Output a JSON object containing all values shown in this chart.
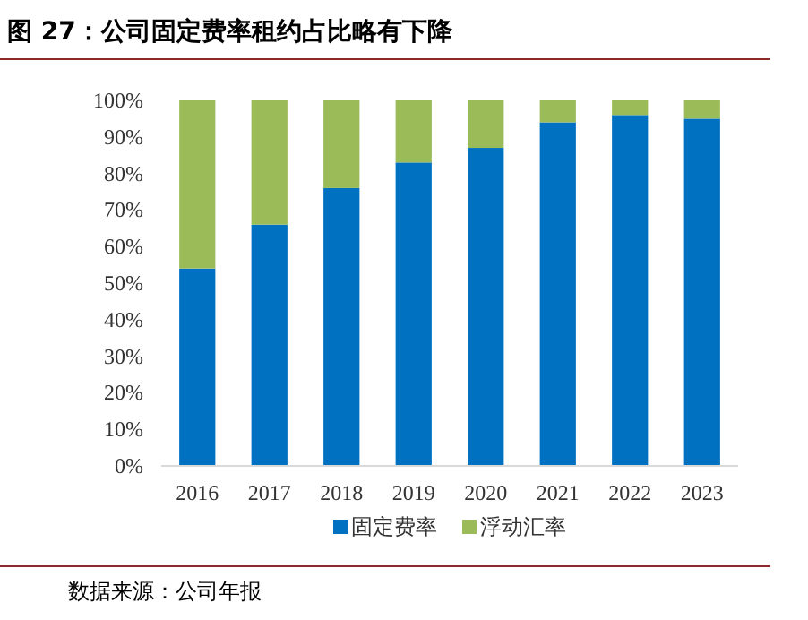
{
  "chart_data": {
    "type": "bar",
    "stacked": true,
    "title": "图 27：公司固定费率租约占比略有下降",
    "categories": [
      "2016",
      "2017",
      "2018",
      "2019",
      "2020",
      "2021",
      "2022",
      "2023"
    ],
    "series": [
      {
        "name": "固定费率",
        "color": "#0070c0",
        "values": [
          54,
          66,
          76,
          83,
          87,
          94,
          96,
          95
        ]
      },
      {
        "name": "浮动汇率",
        "color": "#9bbb59",
        "values": [
          46,
          34,
          24,
          17,
          13,
          6,
          4,
          5
        ]
      }
    ],
    "ylim": [
      0,
      100
    ],
    "yticks": [
      {
        "value": 0,
        "label": "0%"
      },
      {
        "value": 10,
        "label": "10%"
      },
      {
        "value": 20,
        "label": "20%"
      },
      {
        "value": 30,
        "label": "30%"
      },
      {
        "value": 40,
        "label": "40%"
      },
      {
        "value": 50,
        "label": "50%"
      },
      {
        "value": 60,
        "label": "60%"
      },
      {
        "value": 70,
        "label": "70%"
      },
      {
        "value": 80,
        "label": "80%"
      },
      {
        "value": 90,
        "label": "90%"
      },
      {
        "value": 100,
        "label": "100%"
      }
    ],
    "grid": false,
    "legend": "bottom",
    "annotations": [
      "数据来源：公司年报"
    ]
  }
}
